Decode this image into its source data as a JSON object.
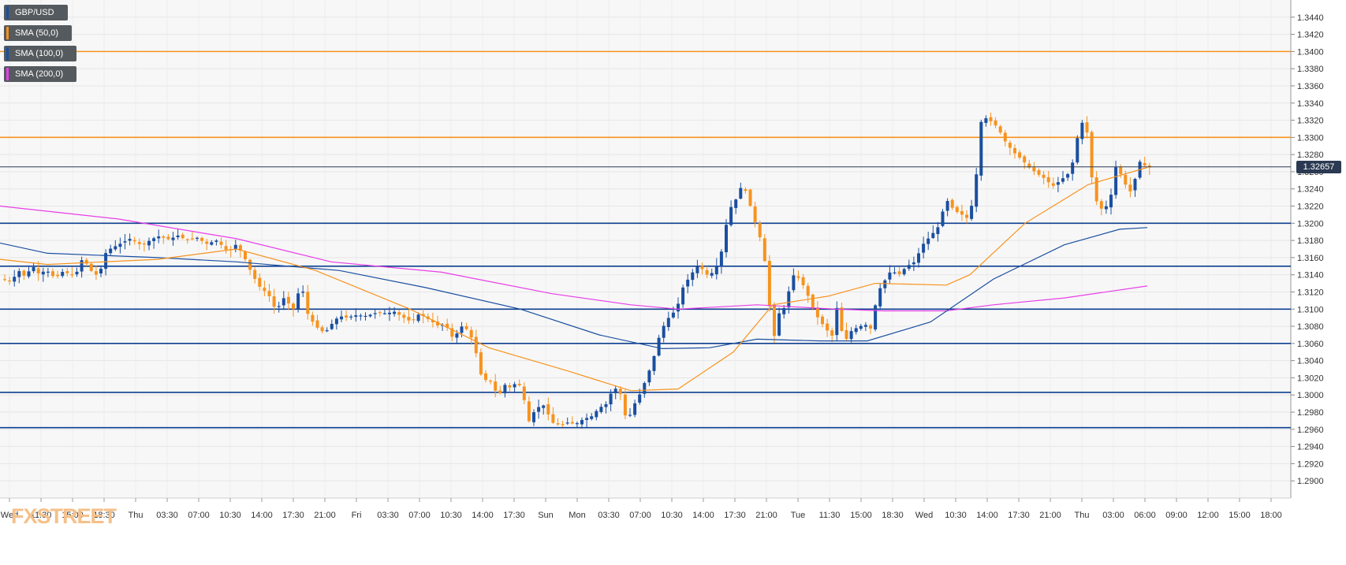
{
  "legend": {
    "instrument": "GBP/USD",
    "sma50": "SMA (50,0)",
    "sma100": "SMA (100,0)",
    "sma200": "SMA (200,0)"
  },
  "current_price_label": "1.32657",
  "logo": "FXSTREET",
  "colors": {
    "bull_candle": "#1a4fa0",
    "bear_candle": "#f7931e",
    "sma50": "#f7931e",
    "sma100": "#1a4fa0",
    "sma200": "#e83ee8",
    "resistance": "#f7931e",
    "support": "#0d3f8f"
  },
  "chart_data": {
    "type": "candlestick",
    "ylim": [
      1.288,
      1.346
    ],
    "y_ticks": [
      "1.2900",
      "1.2920",
      "1.2940",
      "1.2960",
      "1.2980",
      "1.3000",
      "1.3020",
      "1.3040",
      "1.3060",
      "1.3080",
      "1.3100",
      "1.3120",
      "1.3140",
      "1.3160",
      "1.3180",
      "1.3200",
      "1.3220",
      "1.3240",
      "1.3260",
      "1.3280",
      "1.3300",
      "1.3320",
      "1.3340",
      "1.3360",
      "1.3380",
      "1.3400",
      "1.3420",
      "1.3440"
    ],
    "x_ticks": [
      "Wed",
      "11:30",
      "15:00",
      "18:30",
      "Thu",
      "03:30",
      "07:00",
      "10:30",
      "14:00",
      "17:30",
      "21:00",
      "Fri",
      "03:30",
      "07:00",
      "10:30",
      "14:00",
      "17:30",
      "Sun",
      "Mon",
      "03:30",
      "07:00",
      "10:30",
      "14:00",
      "17:30",
      "21:00",
      "Tue",
      "11:30",
      "15:00",
      "18:30",
      "Wed",
      "10:30",
      "14:00",
      "17:30",
      "21:00",
      "Thu",
      "03:00",
      "06:00",
      "09:00",
      "12:00",
      "15:00",
      "18:00"
    ],
    "resistance_levels": [
      1.34,
      1.33
    ],
    "support_levels": [
      1.32,
      1.315,
      1.31,
      1.306,
      1.3003,
      1.2962
    ],
    "current_price": 1.32657,
    "close_path": [
      [
        0,
        1.3135
      ],
      [
        14,
        1.3133
      ],
      [
        25,
        1.3145
      ],
      [
        33,
        1.3136
      ],
      [
        40,
        1.3152
      ],
      [
        50,
        1.314
      ],
      [
        58,
        1.3146
      ],
      [
        70,
        1.3136
      ],
      [
        80,
        1.3144
      ],
      [
        95,
        1.3138
      ],
      [
        105,
        1.316
      ],
      [
        115,
        1.3145
      ],
      [
        125,
        1.3138
      ],
      [
        135,
        1.3168
      ],
      [
        150,
        1.3175
      ],
      [
        165,
        1.3182
      ],
      [
        180,
        1.3174
      ],
      [
        190,
        1.318
      ],
      [
        200,
        1.3185
      ],
      [
        215,
        1.3181
      ],
      [
        225,
        1.3186
      ],
      [
        235,
        1.3181
      ],
      [
        250,
        1.3183
      ],
      [
        262,
        1.3176
      ],
      [
        275,
        1.318
      ],
      [
        290,
        1.3166
      ],
      [
        300,
        1.3176
      ],
      [
        310,
        1.316
      ],
      [
        320,
        1.314
      ],
      [
        330,
        1.3125
      ],
      [
        340,
        1.3118
      ],
      [
        350,
        1.3098
      ],
      [
        360,
        1.3113
      ],
      [
        372,
        1.31
      ],
      [
        382,
        1.313
      ],
      [
        390,
        1.3095
      ],
      [
        400,
        1.308
      ],
      [
        412,
        1.3072
      ],
      [
        420,
        1.3082
      ],
      [
        430,
        1.3092
      ],
      [
        440,
        1.309
      ],
      [
        452,
        1.3093
      ],
      [
        465,
        1.3092
      ],
      [
        478,
        1.3096
      ],
      [
        490,
        1.3095
      ],
      [
        500,
        1.3097
      ],
      [
        512,
        1.309
      ],
      [
        522,
        1.3085
      ],
      [
        532,
        1.3095
      ],
      [
        545,
        1.3087
      ],
      [
        555,
        1.3081
      ],
      [
        565,
        1.3082
      ],
      [
        575,
        1.3065
      ],
      [
        585,
        1.308
      ],
      [
        595,
        1.3075
      ],
      [
        605,
        1.3045
      ],
      [
        612,
        1.3015
      ],
      [
        620,
        1.302
      ],
      [
        632,
        1.2998
      ],
      [
        640,
        1.3012
      ],
      [
        648,
        1.3008
      ],
      [
        655,
        1.3015
      ],
      [
        662,
        1.3008
      ],
      [
        670,
        1.2968
      ],
      [
        680,
        1.2985
      ],
      [
        690,
        1.2988
      ],
      [
        700,
        1.2968
      ],
      [
        710,
        1.2965
      ],
      [
        720,
        1.2968
      ],
      [
        730,
        1.2966
      ],
      [
        740,
        1.2972
      ],
      [
        750,
        1.2975
      ],
      [
        760,
        1.2985
      ],
      [
        770,
        1.299
      ],
      [
        778,
        1.301
      ],
      [
        788,
        1.3
      ],
      [
        795,
        1.2966
      ],
      [
        802,
        1.2985
      ],
      [
        812,
        1.3002
      ],
      [
        820,
        1.302
      ],
      [
        828,
        1.304
      ],
      [
        838,
        1.3075
      ],
      [
        848,
        1.309
      ],
      [
        858,
        1.31
      ],
      [
        866,
        1.3125
      ],
      [
        876,
        1.314
      ],
      [
        886,
        1.3152
      ],
      [
        896,
        1.314
      ],
      [
        906,
        1.3143
      ],
      [
        916,
        1.317
      ],
      [
        924,
        1.3215
      ],
      [
        932,
        1.3225
      ],
      [
        942,
        1.3247
      ],
      [
        950,
        1.3225
      ],
      [
        958,
        1.32
      ],
      [
        965,
        1.318
      ],
      [
        972,
        1.3145
      ],
      [
        980,
        1.306
      ],
      [
        988,
        1.3095
      ],
      [
        996,
        1.3103
      ],
      [
        1005,
        1.314
      ],
      [
        1015,
        1.3135
      ],
      [
        1025,
        1.3115
      ],
      [
        1035,
        1.3093
      ],
      [
        1045,
        1.308
      ],
      [
        1055,
        1.3068
      ],
      [
        1062,
        1.3105
      ],
      [
        1070,
        1.306
      ],
      [
        1080,
        1.3075
      ],
      [
        1090,
        1.308
      ],
      [
        1100,
        1.3082
      ],
      [
        1106,
        1.3075
      ],
      [
        1112,
        1.3118
      ],
      [
        1120,
        1.313
      ],
      [
        1130,
        1.3145
      ],
      [
        1140,
        1.314
      ],
      [
        1150,
        1.315
      ],
      [
        1160,
        1.3155
      ],
      [
        1170,
        1.3175
      ],
      [
        1180,
        1.3185
      ],
      [
        1190,
        1.3196
      ],
      [
        1200,
        1.3228
      ],
      [
        1210,
        1.3215
      ],
      [
        1220,
        1.321
      ],
      [
        1228,
        1.3205
      ],
      [
        1236,
        1.3235
      ],
      [
        1245,
        1.3325
      ],
      [
        1255,
        1.332
      ],
      [
        1265,
        1.3312
      ],
      [
        1275,
        1.3295
      ],
      [
        1285,
        1.3283
      ],
      [
        1295,
        1.3275
      ],
      [
        1305,
        1.3265
      ],
      [
        1315,
        1.3258
      ],
      [
        1325,
        1.3252
      ],
      [
        1335,
        1.3243
      ],
      [
        1345,
        1.325
      ],
      [
        1355,
        1.3258
      ],
      [
        1362,
        1.3275
      ],
      [
        1370,
        1.332
      ],
      [
        1378,
        1.331
      ],
      [
        1385,
        1.325
      ],
      [
        1392,
        1.322
      ],
      [
        1400,
        1.3215
      ],
      [
        1408,
        1.3228
      ],
      [
        1416,
        1.327
      ],
      [
        1425,
        1.3248
      ],
      [
        1435,
        1.3235
      ],
      [
        1445,
        1.3272
      ],
      [
        1455,
        1.3265
      ]
    ],
    "sma50_path": [
      [
        0,
        1.3158
      ],
      [
        60,
        1.3152
      ],
      [
        200,
        1.3158
      ],
      [
        300,
        1.317
      ],
      [
        400,
        1.3145
      ],
      [
        520,
        1.31
      ],
      [
        620,
        1.3055
      ],
      [
        720,
        1.3028
      ],
      [
        800,
        1.3005
      ],
      [
        860,
        1.3007
      ],
      [
        930,
        1.305
      ],
      [
        980,
        1.3105
      ],
      [
        1050,
        1.3115
      ],
      [
        1110,
        1.313
      ],
      [
        1200,
        1.3128
      ],
      [
        1230,
        1.314
      ],
      [
        1300,
        1.32
      ],
      [
        1380,
        1.3245
      ],
      [
        1455,
        1.3265
      ]
    ],
    "sma100_path": [
      [
        0,
        1.3177
      ],
      [
        60,
        1.3165
      ],
      [
        200,
        1.316
      ],
      [
        300,
        1.3155
      ],
      [
        430,
        1.3145
      ],
      [
        540,
        1.3125
      ],
      [
        660,
        1.31
      ],
      [
        760,
        1.307
      ],
      [
        840,
        1.3054
      ],
      [
        900,
        1.3055
      ],
      [
        960,
        1.3065
      ],
      [
        1040,
        1.3063
      ],
      [
        1100,
        1.3063
      ],
      [
        1180,
        1.3085
      ],
      [
        1260,
        1.3135
      ],
      [
        1350,
        1.3175
      ],
      [
        1420,
        1.3193
      ],
      [
        1455,
        1.3195
      ]
    ],
    "sma200_path": [
      [
        0,
        1.322
      ],
      [
        150,
        1.3205
      ],
      [
        300,
        1.3182
      ],
      [
        420,
        1.3155
      ],
      [
        560,
        1.3143
      ],
      [
        700,
        1.3118
      ],
      [
        800,
        1.3105
      ],
      [
        860,
        1.31
      ],
      [
        960,
        1.3105
      ],
      [
        1060,
        1.31
      ],
      [
        1120,
        1.3098
      ],
      [
        1200,
        1.3098
      ],
      [
        1260,
        1.3105
      ],
      [
        1350,
        1.3113
      ],
      [
        1455,
        1.3127
      ]
    ]
  }
}
